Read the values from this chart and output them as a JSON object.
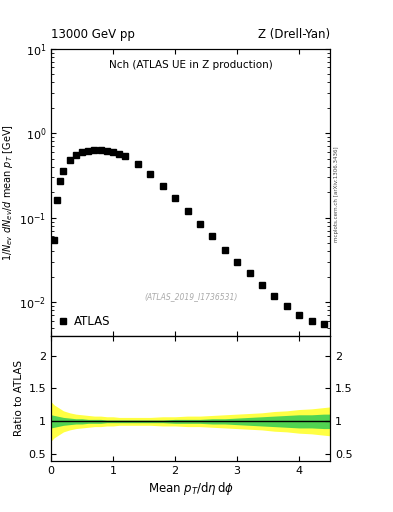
{
  "title_left": "13000 GeV pp",
  "title_right": "Z (Drell-Yan)",
  "plot_title": "Nch (ATLAS UE in Z production)",
  "watermark": "(ATLAS_2019_I1736531)",
  "ylabel": "1/N_{ev} dN_{ev}/d mean p_{T} [GeV^{-1}]",
  "ylabel_ratio": "Ratio to ATLAS",
  "xlabel": "Mean p_{T}/d\\eta d\\phi",
  "atlas_label": "ATLAS",
  "side_label": "mcplots.cern.ch [arXiv:1306.3436]",
  "data_x": [
    0.05,
    0.1,
    0.15,
    0.2,
    0.3,
    0.4,
    0.5,
    0.6,
    0.7,
    0.8,
    0.9,
    1.0,
    1.1,
    1.2,
    1.4,
    1.6,
    1.8,
    2.0,
    2.2,
    2.4,
    2.6,
    2.8,
    3.0,
    3.2,
    3.4,
    3.6,
    3.8,
    4.0,
    4.2,
    4.4
  ],
  "data_y": [
    0.055,
    0.16,
    0.27,
    0.36,
    0.48,
    0.55,
    0.6,
    0.62,
    0.63,
    0.63,
    0.62,
    0.6,
    0.57,
    0.53,
    0.43,
    0.33,
    0.24,
    0.17,
    0.12,
    0.085,
    0.06,
    0.042,
    0.03,
    0.022,
    0.016,
    0.012,
    0.009,
    0.007,
    0.006,
    0.0055
  ],
  "ratio_x": [
    0.0,
    0.05,
    0.1,
    0.15,
    0.2,
    0.3,
    0.4,
    0.5,
    0.6,
    0.7,
    0.8,
    0.9,
    1.0,
    1.1,
    1.2,
    1.4,
    1.6,
    1.8,
    2.0,
    2.2,
    2.4,
    2.6,
    2.8,
    3.0,
    3.2,
    3.4,
    3.6,
    3.8,
    4.0,
    4.2,
    4.4,
    4.5
  ],
  "ratio_green_upper": [
    1.1,
    1.09,
    1.08,
    1.07,
    1.06,
    1.05,
    1.04,
    1.04,
    1.03,
    1.03,
    1.03,
    1.02,
    1.02,
    1.02,
    1.02,
    1.02,
    1.02,
    1.02,
    1.03,
    1.03,
    1.03,
    1.04,
    1.04,
    1.05,
    1.06,
    1.07,
    1.08,
    1.09,
    1.1,
    1.1,
    1.11,
    1.11
  ],
  "ratio_green_lower": [
    0.9,
    0.91,
    0.92,
    0.93,
    0.94,
    0.95,
    0.96,
    0.96,
    0.97,
    0.97,
    0.97,
    0.98,
    0.98,
    0.98,
    0.98,
    0.98,
    0.98,
    0.98,
    0.97,
    0.97,
    0.97,
    0.96,
    0.96,
    0.95,
    0.94,
    0.93,
    0.92,
    0.91,
    0.9,
    0.9,
    0.89,
    0.89
  ],
  "ratio_yellow_upper": [
    1.3,
    1.25,
    1.22,
    1.19,
    1.16,
    1.13,
    1.11,
    1.1,
    1.09,
    1.08,
    1.08,
    1.07,
    1.07,
    1.06,
    1.06,
    1.06,
    1.06,
    1.07,
    1.07,
    1.08,
    1.08,
    1.09,
    1.1,
    1.11,
    1.12,
    1.13,
    1.15,
    1.16,
    1.18,
    1.19,
    1.21,
    1.22
  ],
  "ratio_yellow_lower": [
    0.7,
    0.75,
    0.78,
    0.81,
    0.84,
    0.87,
    0.89,
    0.9,
    0.91,
    0.92,
    0.92,
    0.93,
    0.93,
    0.94,
    0.94,
    0.94,
    0.94,
    0.93,
    0.93,
    0.92,
    0.92,
    0.91,
    0.9,
    0.89,
    0.88,
    0.87,
    0.85,
    0.84,
    0.82,
    0.81,
    0.79,
    0.78
  ],
  "marker_color": "#000000",
  "marker_size": 4,
  "green_color": "#33cc55",
  "yellow_color": "#ffff44",
  "xlim": [
    0,
    4.5
  ],
  "ylim_main": [
    0.004,
    10
  ],
  "ylim_ratio": [
    0.4,
    2.3
  ],
  "ratio_yticks": [
    0.5,
    1.0,
    1.5,
    2.0
  ],
  "background_color": "#ffffff"
}
